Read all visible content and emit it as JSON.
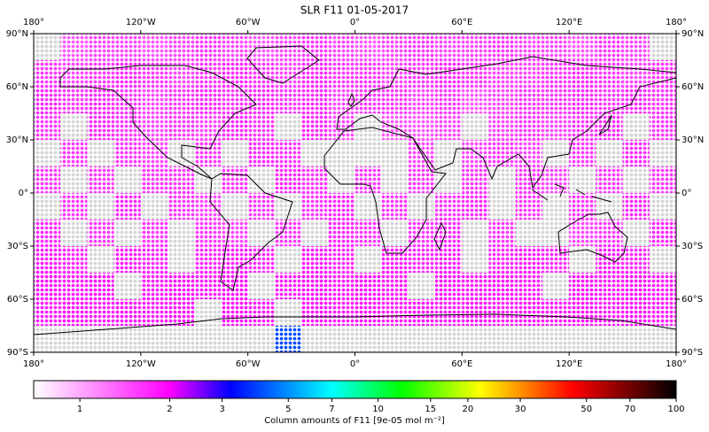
{
  "chart_data": {
    "type": "map",
    "title": "SLR F11 01-05-2017",
    "xlim": [
      -180,
      180
    ],
    "ylim": [
      -90,
      90
    ],
    "xticks": [
      {
        "value": -180,
        "label": "180°"
      },
      {
        "value": -120,
        "label": "120°W"
      },
      {
        "value": -60,
        "label": "60°W"
      },
      {
        "value": 0,
        "label": "0°"
      },
      {
        "value": 60,
        "label": "60°E"
      },
      {
        "value": 120,
        "label": "120°E"
      },
      {
        "value": 180,
        "label": "180°"
      }
    ],
    "yticks": [
      {
        "value": 90,
        "label": "90°N"
      },
      {
        "value": 60,
        "label": "60°N"
      },
      {
        "value": 30,
        "label": "30°N"
      },
      {
        "value": 0,
        "label": "0°"
      },
      {
        "value": -30,
        "label": "30°S"
      },
      {
        "value": -60,
        "label": "60°S"
      },
      {
        "value": -90,
        "label": "90°S"
      }
    ],
    "x": [
      -172.5,
      -157.5,
      -142.5,
      -127.5,
      -112.5,
      -97.5,
      -82.5,
      -67.5,
      -52.5,
      -37.5,
      -22.5,
      -7.5,
      7.5,
      22.5,
      37.5,
      52.5,
      67.5,
      82.5,
      97.5,
      112.5,
      127.5,
      142.5,
      157.5,
      172.5
    ],
    "y": [
      82.5,
      67.5,
      52.5,
      37.5,
      22.5,
      7.5,
      -7.5,
      -22.5,
      -37.5,
      -52.5,
      -67.5,
      -82.5
    ],
    "values": [
      [
        null,
        1.4,
        1.5,
        1.5,
        1.4,
        1.5,
        1.6,
        1.5,
        1.4,
        1.5,
        1.6,
        1.5,
        1.4,
        1.5,
        1.6,
        1.5,
        1.5,
        1.6,
        1.5,
        1.5,
        1.4,
        1.6,
        1.5,
        null
      ],
      [
        1.6,
        1.5,
        1.6,
        1.7,
        1.6,
        1.5,
        1.6,
        1.7,
        1.6,
        1.5,
        1.7,
        1.6,
        1.6,
        1.5,
        1.6,
        1.7,
        1.6,
        1.5,
        1.5,
        1.6,
        1.7,
        1.6,
        1.5,
        1.6
      ],
      [
        1.7,
        1.6,
        1.7,
        1.6,
        1.5,
        1.6,
        1.7,
        1.6,
        1.7,
        1.6,
        1.7,
        1.5,
        1.6,
        1.6,
        1.5,
        1.6,
        1.4,
        1.5,
        1.6,
        1.6,
        1.7,
        1.6,
        1.7,
        1.6
      ],
      [
        1.6,
        null,
        1.7,
        1.6,
        1.5,
        1.6,
        1.5,
        1.7,
        1.6,
        null,
        1.7,
        1.5,
        null,
        1.4,
        1.4,
        1.5,
        null,
        1.5,
        1.6,
        1.5,
        1.6,
        1.7,
        null,
        1.6
      ],
      [
        null,
        1.6,
        null,
        1.6,
        1.5,
        null,
        1.6,
        null,
        1.7,
        1.6,
        null,
        null,
        null,
        null,
        1.5,
        null,
        1.5,
        1.6,
        1.5,
        null,
        1.6,
        null,
        1.7,
        null
      ],
      [
        1.6,
        null,
        1.6,
        null,
        1.6,
        1.6,
        null,
        1.6,
        null,
        1.7,
        1.6,
        null,
        1.6,
        null,
        1.6,
        null,
        1.6,
        null,
        1.6,
        1.5,
        null,
        1.6,
        null,
        1.6
      ],
      [
        null,
        1.6,
        null,
        1.7,
        null,
        1.6,
        1.5,
        null,
        1.6,
        null,
        1.6,
        1.7,
        null,
        1.6,
        null,
        1.6,
        1.7,
        null,
        1.6,
        null,
        1.6,
        null,
        1.7,
        null
      ],
      [
        1.7,
        null,
        1.6,
        null,
        1.6,
        null,
        1.6,
        1.5,
        null,
        1.6,
        null,
        1.7,
        1.6,
        null,
        1.6,
        1.7,
        null,
        1.6,
        null,
        null,
        1.5,
        1.6,
        null,
        1.7
      ],
      [
        1.8,
        1.7,
        null,
        1.8,
        1.7,
        null,
        1.7,
        1.8,
        1.7,
        null,
        1.8,
        1.7,
        null,
        1.8,
        1.7,
        1.8,
        null,
        1.7,
        1.8,
        1.7,
        null,
        1.8,
        1.7,
        null
      ],
      [
        1.9,
        1.8,
        1.9,
        null,
        1.8,
        1.9,
        1.8,
        1.9,
        null,
        1.8,
        1.9,
        1.8,
        1.9,
        1.8,
        null,
        1.9,
        1.8,
        1.9,
        1.8,
        null,
        1.9,
        1.8,
        1.9,
        1.8
      ],
      [
        1.8,
        1.9,
        1.8,
        1.9,
        1.8,
        1.9,
        null,
        1.9,
        1.8,
        null,
        1.9,
        1.8,
        1.9,
        1.8,
        1.9,
        1.8,
        1.9,
        1.8,
        1.9,
        1.8,
        1.9,
        1.8,
        1.9,
        1.8
      ],
      [
        null,
        null,
        null,
        null,
        null,
        null,
        null,
        null,
        null,
        4,
        null,
        null,
        null,
        null,
        null,
        null,
        null,
        null,
        null,
        null,
        null,
        null,
        null,
        null
      ]
    ],
    "missing_color": "#d4d4d4",
    "clim": [
      0.7,
      100
    ],
    "cscale": "log",
    "colormap": [
      {
        "value": 0.7,
        "color": "#ffffff"
      },
      {
        "value": 2,
        "color": "#ff00ff"
      },
      {
        "value": 3.2,
        "color": "#0000ff"
      },
      {
        "value": 7,
        "color": "#00ffff"
      },
      {
        "value": 12,
        "color": "#00ff00"
      },
      {
        "value": 22,
        "color": "#ffff00"
      },
      {
        "value": 45,
        "color": "#ff0000"
      },
      {
        "value": 100,
        "color": "#000000"
      }
    ],
    "cbarticks": [
      1,
      2,
      3,
      5,
      7,
      10,
      15,
      20,
      30,
      50,
      70,
      100
    ],
    "cbar_label": "Column amounts of F11 [9e-05 mol m⁻²]"
  }
}
